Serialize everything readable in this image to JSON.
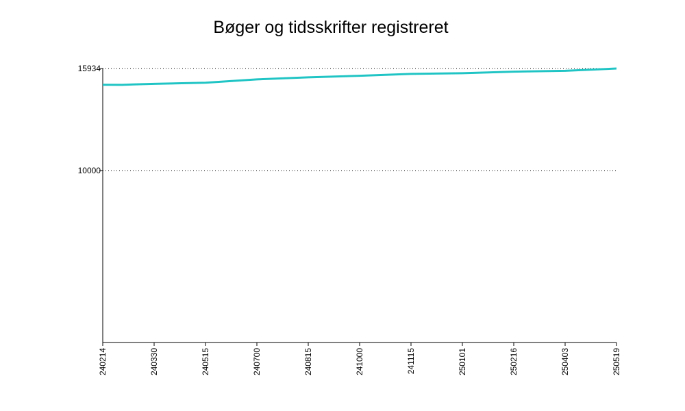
{
  "chart_data": {
    "type": "line",
    "title": "Bøger og tidsskrifter registreret",
    "xlabel": "",
    "ylabel": "",
    "x_ticks": [
      "240214",
      "240330",
      "240515",
      "240700",
      "240815",
      "241000",
      "241115",
      "250101",
      "250216",
      "250403",
      "250519"
    ],
    "y_ticks": [
      "10000",
      "15934"
    ],
    "ylim": [
      0,
      15934
    ],
    "grid": "y-dotted",
    "legend": "none",
    "series": [
      {
        "color": "#20c4c4",
        "x": [
          "240214",
          "240302",
          "240312",
          "240330",
          "240515",
          "240700",
          "240815",
          "241000",
          "241115",
          "250101",
          "250216",
          "250403",
          "250519"
        ],
        "y": [
          14990,
          14980,
          15010,
          15040,
          15110,
          15300,
          15420,
          15510,
          15620,
          15660,
          15750,
          15800,
          15934
        ]
      }
    ]
  }
}
